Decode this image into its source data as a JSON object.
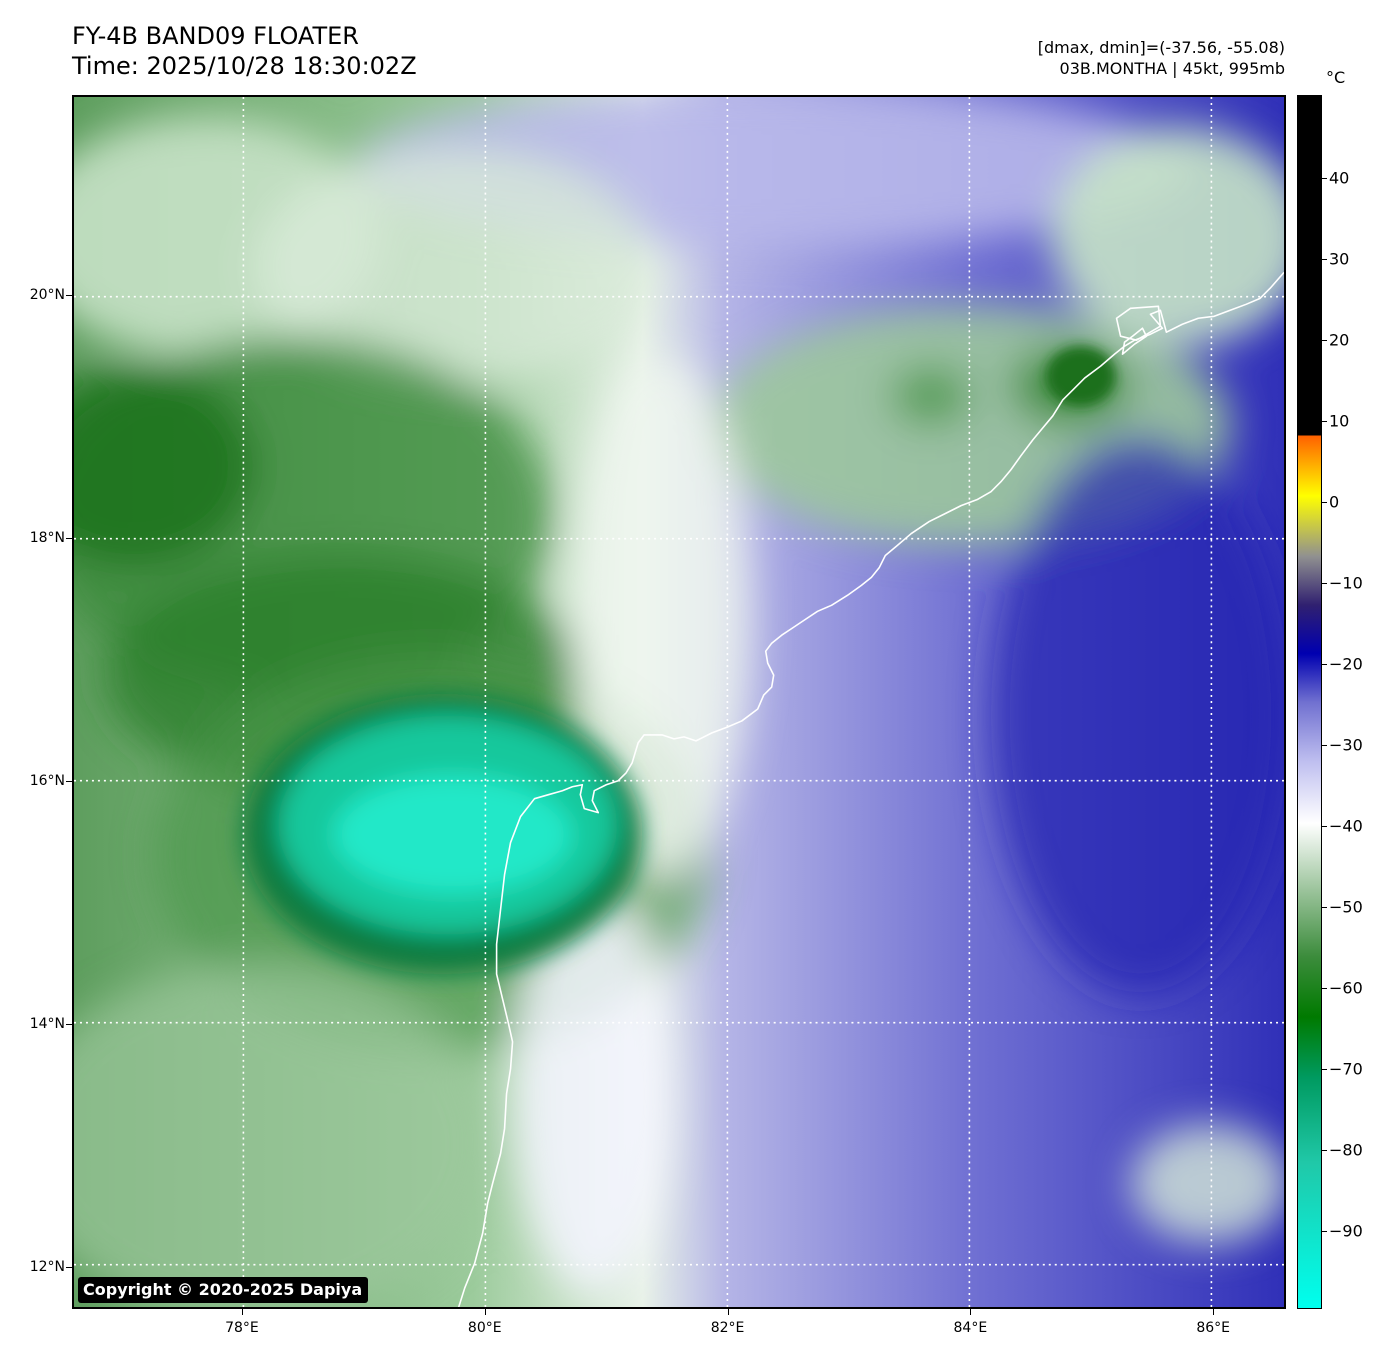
{
  "header": {
    "title_line1": "FY-4B BAND09 FLOATER",
    "title_line2": "Time: 2025/10/28 18:30:02Z",
    "info_line1": "[dmax, dmin]=(-37.56, -55.08)",
    "info_line2": "03B.MONTHA | 45kt, 995mb"
  },
  "map": {
    "copyright": "Copyright © 2020-2025 Dapiya",
    "lat_labels": [
      "20°N",
      "18°N",
      "16°N",
      "14°N",
      "12°N"
    ],
    "lon_labels": [
      "78°E",
      "80°E",
      "82°E",
      "84°E",
      "86°E"
    ],
    "lat_range": [
      11.65,
      21.65
    ],
    "lon_range": [
      76.6,
      86.6
    ]
  },
  "colorbar": {
    "unit": "°C",
    "tick_labels": [
      "40",
      "30",
      "20",
      "10",
      "0",
      "−10",
      "−20",
      "−30",
      "−40",
      "−50",
      "−60",
      "−70",
      "−80",
      "−90"
    ],
    "colors": {
      "warm_black": "#000000",
      "cyan": "#00ffee",
      "green": "#007a00",
      "white": "#ffffff",
      "blue": "#0000b0",
      "yellow": "#ffff00",
      "red": "#ff0000"
    }
  }
}
